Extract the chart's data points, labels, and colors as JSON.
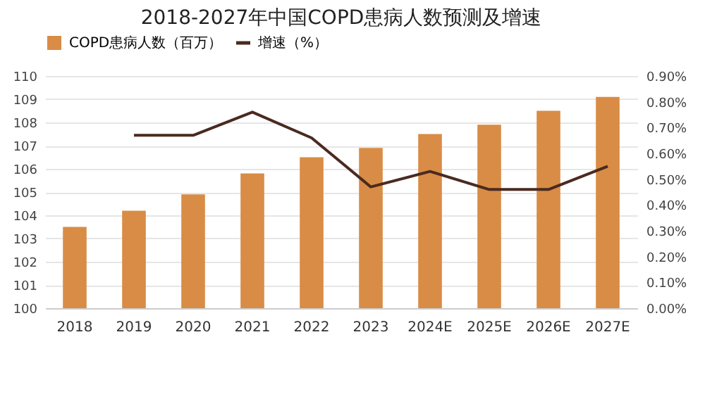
{
  "chart_data": {
    "type": "bar",
    "title": "2018-2027年中国COPD患病人数预测及增速",
    "categories": [
      "2018",
      "2019",
      "2020",
      "2021",
      "2022",
      "2023",
      "2024E",
      "2025E",
      "2026E",
      "2027E"
    ],
    "series": [
      {
        "name": "COPD患病人数（百万）",
        "axis": "y",
        "color": "#d98c45",
        "values": [
          103.5,
          104.2,
          104.9,
          105.8,
          106.5,
          106.9,
          107.5,
          107.9,
          108.5,
          109.1
        ]
      },
      {
        "name": "增速（%）",
        "type": "line",
        "axis": "y2",
        "color": "#4a2a20",
        "line_style": "solid",
        "values": [
          null,
          0.67,
          0.67,
          0.76,
          0.66,
          0.47,
          0.53,
          0.46,
          0.46,
          0.55
        ]
      }
    ],
    "ylim": [
      100,
      110
    ],
    "yticks": [
      100,
      101,
      102,
      103,
      104,
      105,
      106,
      107,
      108,
      109,
      110
    ],
    "y2lim": [
      0,
      0.9
    ],
    "y2ticks": [
      {
        "value": 0,
        "label": "0.00%"
      },
      {
        "value": 0.1,
        "label": "0.10%"
      },
      {
        "value": 0.2,
        "label": "0.20%"
      },
      {
        "value": 0.3,
        "label": "0.30%"
      },
      {
        "value": 0.4,
        "label": "0.40%"
      },
      {
        "value": 0.5,
        "label": "0.50%"
      },
      {
        "value": 0.6,
        "label": "0.60%"
      },
      {
        "value": 0.7,
        "label": "0.70%"
      },
      {
        "value": 0.8,
        "label": "0.80%"
      },
      {
        "value": 0.9,
        "label": "0.90%"
      }
    ],
    "grid": "y",
    "legend": "top"
  }
}
